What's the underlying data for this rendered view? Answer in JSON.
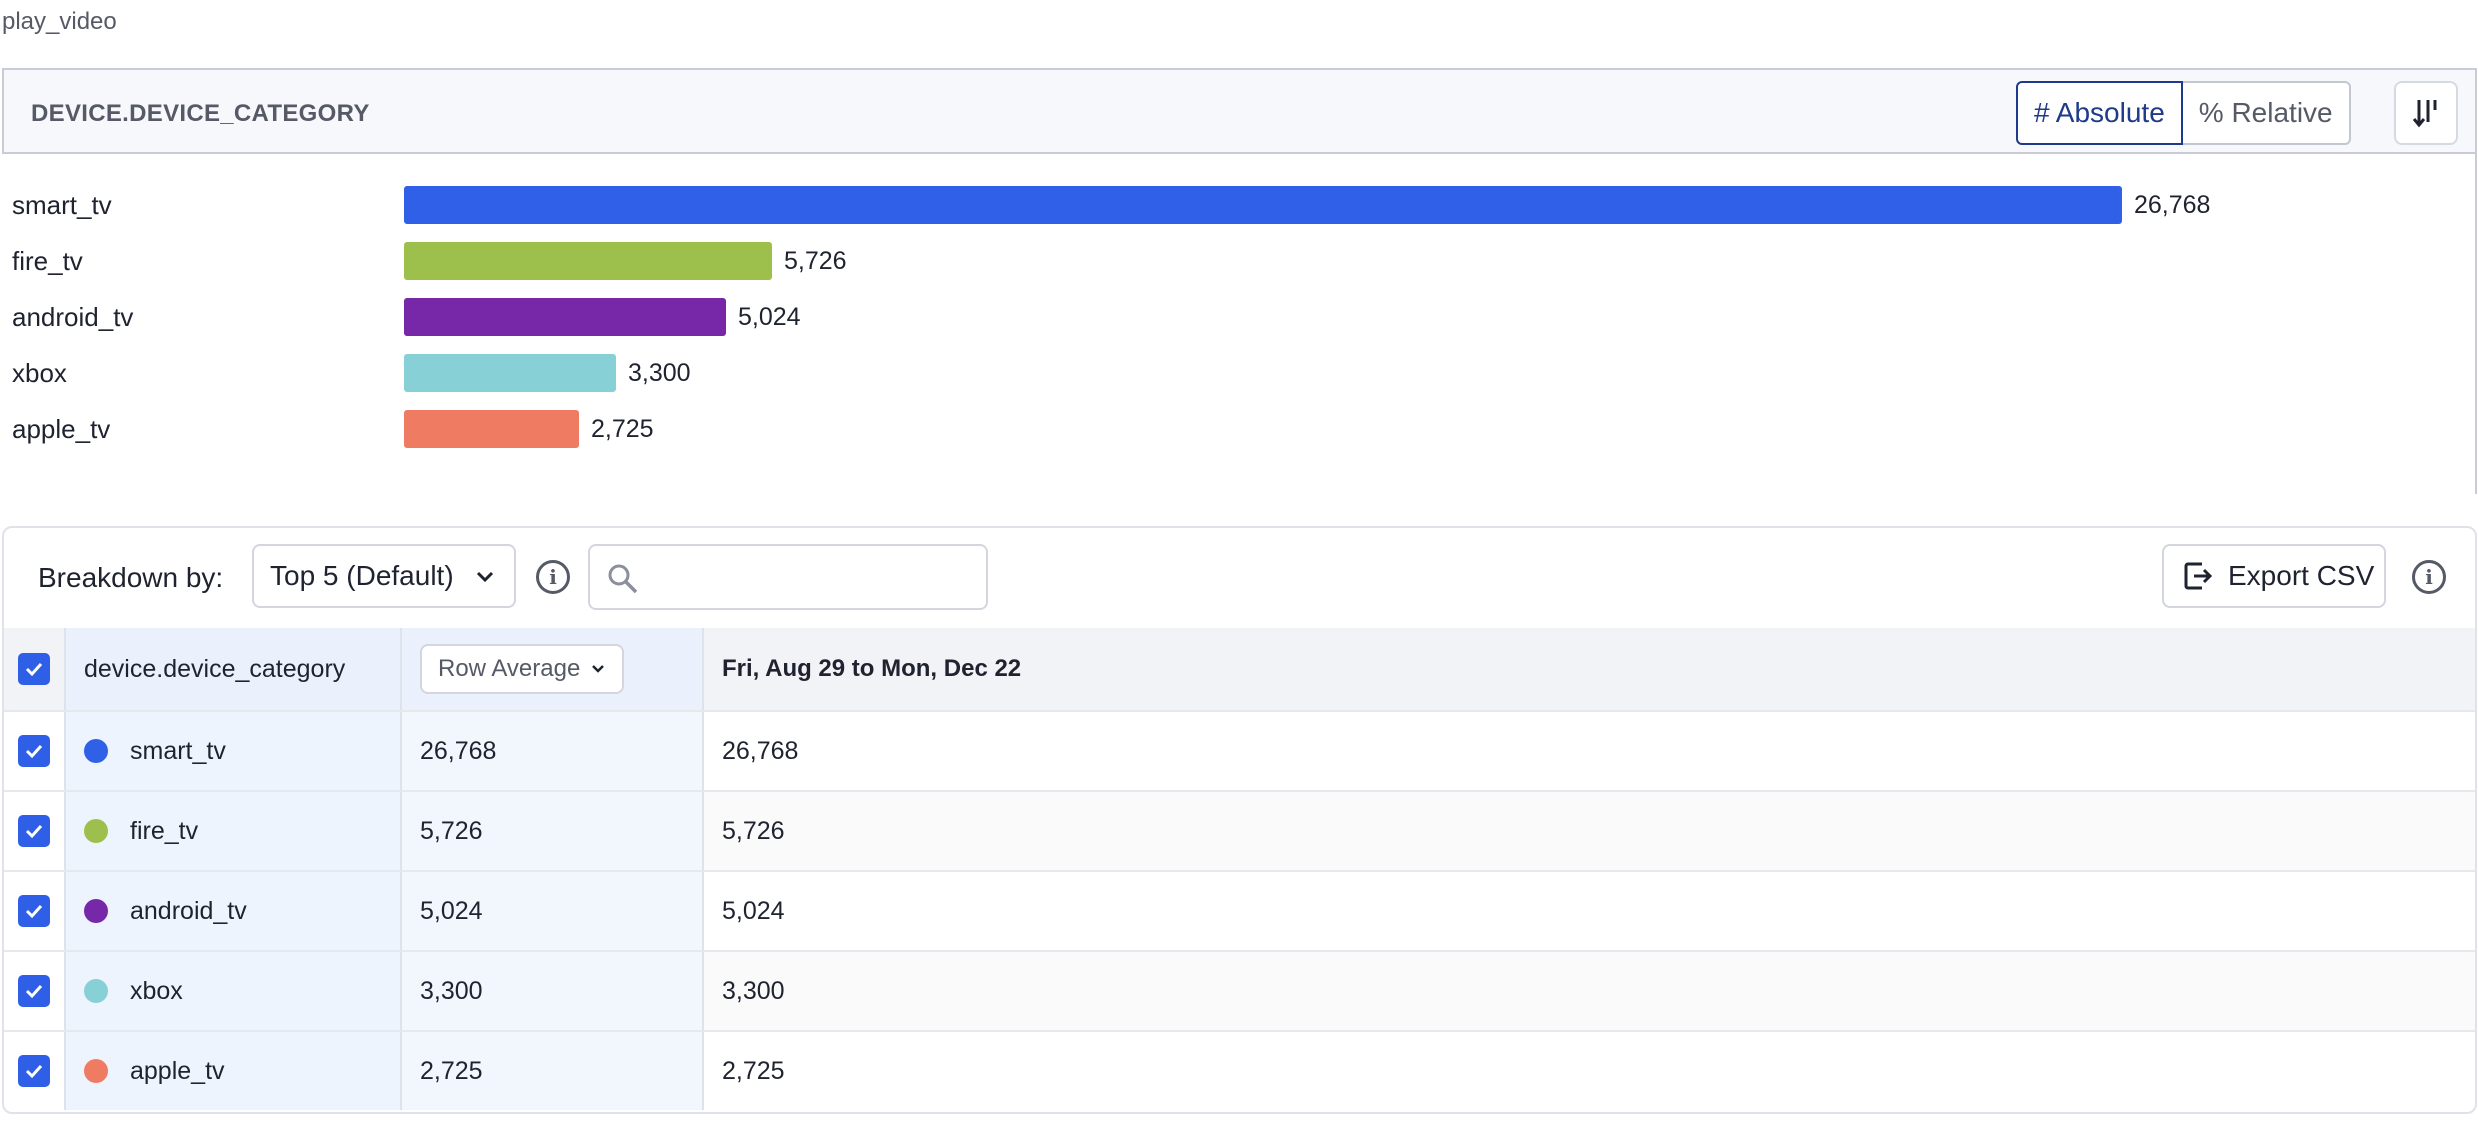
{
  "event_name": "play_video",
  "chart": {
    "title": "DEVICE.DEVICE_CATEGORY",
    "absolute_label": "# Absolute",
    "relative_label": "% Relative"
  },
  "chart_data": {
    "type": "bar",
    "orientation": "horizontal",
    "categories": [
      "smart_tv",
      "fire_tv",
      "android_tv",
      "xbox",
      "apple_tv"
    ],
    "values": [
      26768,
      5726,
      5024,
      3300,
      2725
    ],
    "value_labels": [
      "26,768",
      "5,726",
      "5,024",
      "3,300",
      "2,725"
    ],
    "colors": [
      "#3160e8",
      "#9dbf4b",
      "#7628a8",
      "#86d0d6",
      "#ef7c62"
    ],
    "title": "DEVICE.DEVICE_CATEGORY",
    "xlim": [
      0,
      26768
    ]
  },
  "toolbar": {
    "breakdown_label": "Breakdown by:",
    "breakdown_value": "Top 5 (Default)",
    "search_placeholder": "",
    "export_label": "Export CSV"
  },
  "table": {
    "col_name": "device.device_category",
    "col_avg": "Row Average",
    "col_range": "Fri, Aug 29 to Mon, Dec 22",
    "rows": [
      {
        "name": "smart_tv",
        "avg": "26,768",
        "value": "26,768",
        "color": "#3160e8"
      },
      {
        "name": "fire_tv",
        "avg": "5,726",
        "value": "5,726",
        "color": "#9dbf4b"
      },
      {
        "name": "android_tv",
        "avg": "5,024",
        "value": "5,024",
        "color": "#7628a8"
      },
      {
        "name": "xbox",
        "avg": "3,300",
        "value": "3,300",
        "color": "#86d0d6"
      },
      {
        "name": "apple_tv",
        "avg": "2,725",
        "value": "2,725",
        "color": "#ef7c62"
      }
    ]
  }
}
